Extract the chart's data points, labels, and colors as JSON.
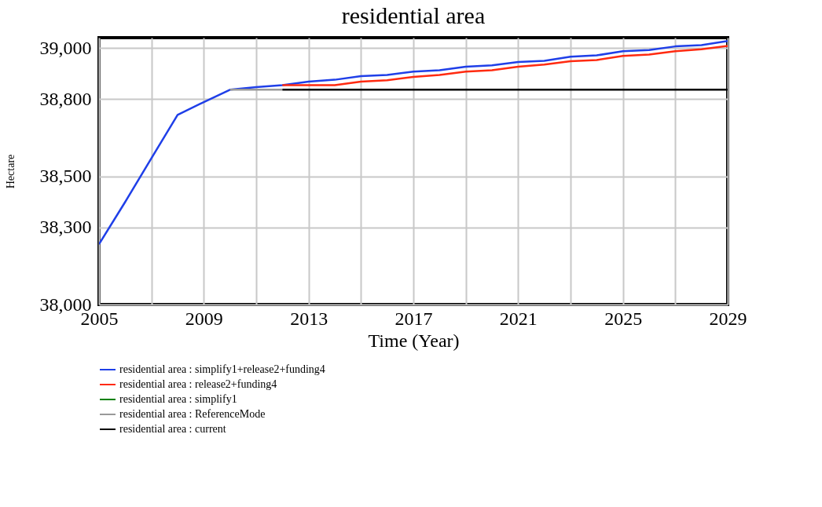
{
  "chart_data": {
    "type": "line",
    "title": "residential area",
    "xlabel": "Time (Year)",
    "ylabel": "Hectare",
    "x": [
      2005,
      2006,
      2007,
      2008,
      2009,
      2010,
      2011,
      2012,
      2013,
      2014,
      2015,
      2016,
      2017,
      2018,
      2019,
      2020,
      2021,
      2022,
      2023,
      2024,
      2025,
      2026,
      2027,
      2028,
      2029
    ],
    "series": [
      {
        "name": "residential area : simplify1+release2+funding4",
        "color": "#1f3fe8",
        "values": [
          38235,
          38400,
          38570,
          38739,
          38789,
          38837,
          38847,
          38855,
          38869,
          38876,
          38890,
          38895,
          38908,
          38913,
          38927,
          38932,
          38945,
          38950,
          38966,
          38971,
          38987,
          38992,
          39006,
          39011,
          39027
        ]
      },
      {
        "name": "residential area : release2+funding4",
        "color": "#ff2a10",
        "values": [
          null,
          null,
          null,
          null,
          null,
          null,
          null,
          38855,
          38855,
          38855,
          38869,
          38874,
          38887,
          38895,
          38908,
          38913,
          38927,
          38935,
          38948,
          38953,
          38969,
          38974,
          38987,
          38995,
          39008
        ]
      },
      {
        "name": "residential area : simplify1",
        "color": "#008000",
        "values": [
          null,
          null,
          null,
          null,
          null,
          null,
          null,
          null,
          null,
          null,
          null,
          null,
          null,
          null,
          null,
          null,
          null,
          null,
          null,
          null,
          null,
          null,
          null,
          null,
          null
        ]
      },
      {
        "name": "residential area : ReferenceMode",
        "color": "#999999",
        "values": [
          null,
          null,
          null,
          null,
          null,
          38837,
          38837,
          38837,
          null,
          null,
          null,
          null,
          null,
          null,
          null,
          null,
          null,
          null,
          null,
          null,
          null,
          null,
          null,
          null,
          null
        ]
      },
      {
        "name": "residential area : current",
        "color": "#000000",
        "values": [
          null,
          null,
          null,
          null,
          null,
          null,
          null,
          38837,
          38837,
          38837,
          38837,
          38837,
          38837,
          38837,
          38837,
          38837,
          38837,
          38837,
          38837,
          38837,
          38837,
          38837,
          38837,
          38837,
          38837
        ]
      }
    ],
    "xlim": [
      2005,
      2029
    ],
    "xticks": [
      2005,
      {
        "value": 2007,
        "label": null
      },
      2009,
      {
        "value": 2011,
        "label": null
      },
      2013,
      {
        "value": 2015,
        "label": null
      },
      2017,
      {
        "value": 2019,
        "label": null
      },
      2021,
      {
        "value": 2023,
        "label": null
      },
      2025,
      {
        "value": 2027,
        "label": null
      },
      2029
    ],
    "ylim": [
      38000,
      39040
    ],
    "yticks": [
      {
        "value": 38000,
        "label": "38,000"
      },
      {
        "value": 38300,
        "label": "38,300"
      },
      {
        "value": 38500,
        "label": "38,500"
      },
      {
        "value": 38800,
        "label": "38,800"
      },
      {
        "value": 39000,
        "label": "39,000"
      }
    ],
    "grid": true,
    "legend": "bottom",
    "marker": "none",
    "line_style": "solid"
  }
}
